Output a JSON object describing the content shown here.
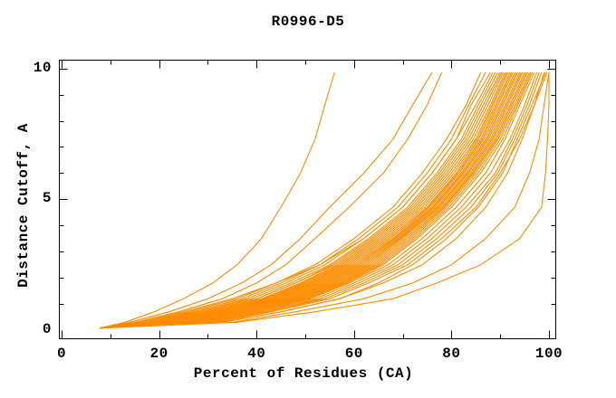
{
  "page": {
    "background": "#ffffff"
  },
  "chart_data": {
    "type": "line",
    "title": "R0996-D5",
    "xlabel": "Percent of Residues (CA)",
    "ylabel": "Distance Cutoff, A",
    "xlim": [
      0,
      100
    ],
    "ylim": [
      0,
      10
    ],
    "grid": false,
    "legend": "none",
    "line_color": "#ff8c00",
    "axis_color": "#000000",
    "x_axis": {
      "major_ticks": [
        0,
        20,
        40,
        60,
        80,
        100
      ],
      "minor_ticks": [
        10,
        30,
        50,
        70,
        90
      ]
    },
    "y_axis": {
      "labeled_ticks": [
        0,
        5,
        10
      ],
      "major_ticks": [
        5,
        10
      ],
      "minor_ticks": [
        1,
        2,
        3,
        4,
        6,
        7,
        8,
        9
      ]
    },
    "series_start_point": [
      7.8,
      0.08
    ],
    "cutoff_levels": [
      0.3,
      0.7,
      1.2,
      1.8,
      2.5,
      3.5,
      4.7,
      6.0,
      7.3,
      8.6,
      9.85
    ],
    "curves_percent_at_cutoff": [
      [
        13,
        19,
        25,
        31,
        36,
        41,
        45,
        49,
        52,
        54,
        56
      ],
      [
        14,
        22,
        30,
        37,
        43,
        49,
        55,
        62,
        68,
        72,
        76
      ],
      [
        15,
        24,
        33,
        40,
        46,
        52,
        59,
        66,
        71,
        75,
        78
      ],
      [
        16,
        26,
        36,
        44,
        52,
        60,
        68,
        74,
        79,
        83,
        86
      ],
      [
        17,
        27,
        37,
        45,
        53,
        61,
        69,
        75,
        80,
        83.5,
        87
      ],
      [
        16,
        25,
        35,
        44,
        53,
        62,
        70,
        76,
        81,
        84,
        88
      ],
      [
        18,
        28,
        38,
        46,
        54,
        62,
        70,
        76,
        81,
        85,
        88.5
      ],
      [
        17,
        28,
        39,
        47,
        55,
        63,
        71,
        77,
        82,
        85.5,
        89
      ],
      [
        19,
        29,
        40,
        48,
        55.5,
        63.5,
        71.5,
        77.5,
        82.5,
        86,
        89.5
      ],
      [
        18,
        29,
        40,
        48,
        56,
        64,
        72,
        78,
        83,
        86.5,
        90
      ],
      [
        20,
        30,
        41,
        49,
        56.5,
        64.5,
        72.5,
        78.5,
        83.5,
        87,
        90.3
      ],
      [
        19,
        30,
        41.5,
        49.5,
        57,
        65,
        73,
        79,
        84,
        87.5,
        90.6
      ],
      [
        21,
        31,
        42,
        50,
        57.5,
        65.5,
        73.5,
        79.5,
        84.5,
        88,
        91
      ],
      [
        20,
        31,
        42.5,
        50.5,
        58,
        66,
        74,
        80,
        85,
        88.3,
        91.3
      ],
      [
        22,
        32,
        43,
        51,
        58.5,
        66.5,
        74.5,
        80.5,
        85.3,
        88.6,
        91.6
      ],
      [
        21,
        32,
        43.5,
        51.5,
        59,
        67,
        75,
        81,
        85.6,
        89,
        92
      ],
      [
        23,
        33,
        44,
        52,
        59.5,
        67.5,
        75.3,
        81.3,
        86,
        89.3,
        92.3
      ],
      [
        22,
        33,
        44.5,
        52.5,
        60,
        68,
        75.6,
        81.6,
        86.3,
        89.6,
        92.6
      ],
      [
        24,
        34,
        45,
        53,
        60.5,
        68.3,
        76,
        82,
        86.6,
        90,
        93
      ],
      [
        23,
        34,
        45.5,
        53.5,
        61,
        68.6,
        76.3,
        82.3,
        87,
        90.3,
        93.3
      ],
      [
        25,
        35,
        46,
        54,
        61.5,
        69,
        76.6,
        82.6,
        87.3,
        90.6,
        93.6
      ],
      [
        24,
        35,
        46.5,
        54.5,
        62,
        69.3,
        77,
        83,
        87.6,
        91,
        94
      ],
      [
        26,
        36,
        47,
        55,
        62.5,
        69.6,
        77.3,
        83.3,
        88,
        91.3,
        94.3
      ],
      [
        25,
        36,
        47.5,
        55.5,
        63,
        70,
        77.6,
        83.6,
        88.3,
        91.6,
        94.6
      ],
      [
        27,
        37,
        48,
        56,
        63.5,
        70.5,
        78,
        84,
        88.6,
        92,
        95
      ],
      [
        26,
        37,
        48.5,
        56.5,
        64,
        71,
        78.3,
        84.3,
        89,
        92.3,
        95.3
      ],
      [
        28,
        38,
        49,
        57,
        64.5,
        71.5,
        78.6,
        84.6,
        89.3,
        92.6,
        95.6
      ],
      [
        27,
        38,
        49.5,
        57.5,
        65,
        72,
        79,
        85,
        89.6,
        93,
        96
      ],
      [
        29,
        39,
        50,
        58,
        65.5,
        72.5,
        79.5,
        85.5,
        90,
        93.3,
        96.3
      ],
      [
        28,
        39,
        50.5,
        58.5,
        66,
        73,
        80,
        86,
        90.5,
        93.6,
        96.6
      ],
      [
        30,
        40,
        51,
        59,
        67,
        74,
        81,
        87,
        91,
        94,
        97
      ],
      [
        29,
        41,
        52,
        60,
        68,
        75,
        82,
        88,
        92,
        95,
        97.5
      ],
      [
        31,
        42,
        53,
        61,
        69,
        76,
        83,
        89,
        92.5,
        95.5,
        98
      ],
      [
        30,
        42,
        54,
        62,
        70,
        77,
        84,
        89.5,
        93,
        96,
        98.5
      ],
      [
        32,
        43,
        55,
        63,
        71,
        78,
        85,
        90,
        94,
        97,
        99
      ],
      [
        33,
        45,
        57,
        65,
        72,
        79,
        85.5,
        90.5,
        93.5,
        96.5,
        99.3
      ],
      [
        33,
        45,
        57,
        66,
        74,
        81,
        87,
        91.5,
        94.5,
        97,
        99.6
      ],
      [
        35,
        48,
        62,
        72,
        80,
        87,
        93,
        96,
        98,
        99,
        100
      ],
      [
        36,
        52,
        68,
        77,
        86,
        94,
        98.5,
        99.3,
        99.7,
        100,
        100
      ]
    ]
  }
}
